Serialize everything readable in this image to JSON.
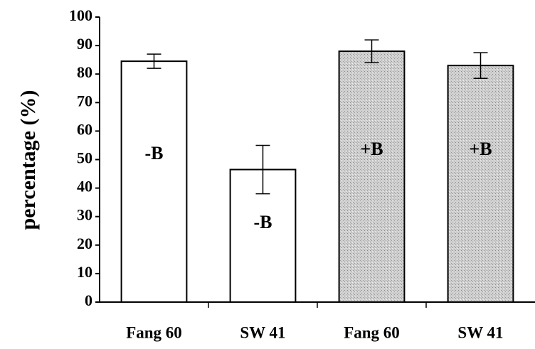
{
  "chart_data": {
    "type": "bar",
    "y_label": "percentage (%)",
    "categories": [
      "Fang 60",
      "SW 41",
      "Fang 60",
      "SW 41"
    ],
    "values": [
      84.5,
      46.5,
      88,
      83
    ],
    "errors": [
      2.5,
      8.5,
      4,
      4.5
    ],
    "bar_labels": [
      "-B",
      "-B",
      "+B",
      "+B"
    ],
    "colors": [
      "#ffffff",
      "#ffffff",
      "#c8c8c8",
      "#c8c8c8"
    ],
    "ylim": [
      0,
      100
    ],
    "yticks": [
      0,
      10,
      20,
      30,
      40,
      50,
      60,
      70,
      80,
      90,
      100
    ],
    "grid": false
  }
}
